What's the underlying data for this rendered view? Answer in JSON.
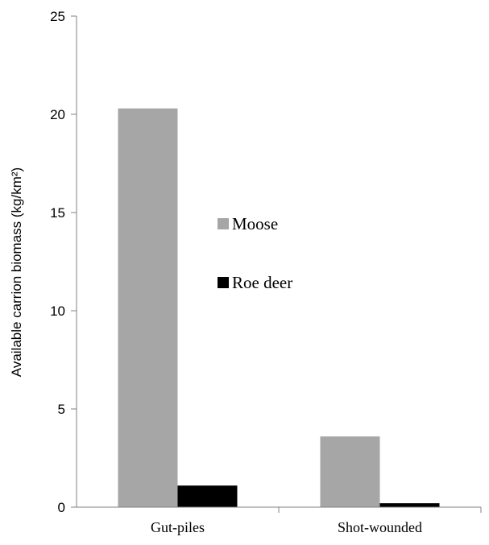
{
  "chart_data": {
    "type": "bar",
    "categories": [
      "Gut-piles",
      "Shot-wounded"
    ],
    "series": [
      {
        "name": "Moose",
        "values": [
          20.3,
          3.6
        ],
        "color": "#a6a6a6"
      },
      {
        "name": "Roe deer",
        "values": [
          1.1,
          0.2
        ],
        "color": "#000000"
      }
    ],
    "xlabel": "",
    "ylabel": "Available carrion biomass (kg/km²)",
    "ylim": [
      0,
      25
    ],
    "yticks": [
      0,
      5,
      10,
      15,
      20,
      25
    ],
    "grid": false,
    "legend_position": "center"
  }
}
